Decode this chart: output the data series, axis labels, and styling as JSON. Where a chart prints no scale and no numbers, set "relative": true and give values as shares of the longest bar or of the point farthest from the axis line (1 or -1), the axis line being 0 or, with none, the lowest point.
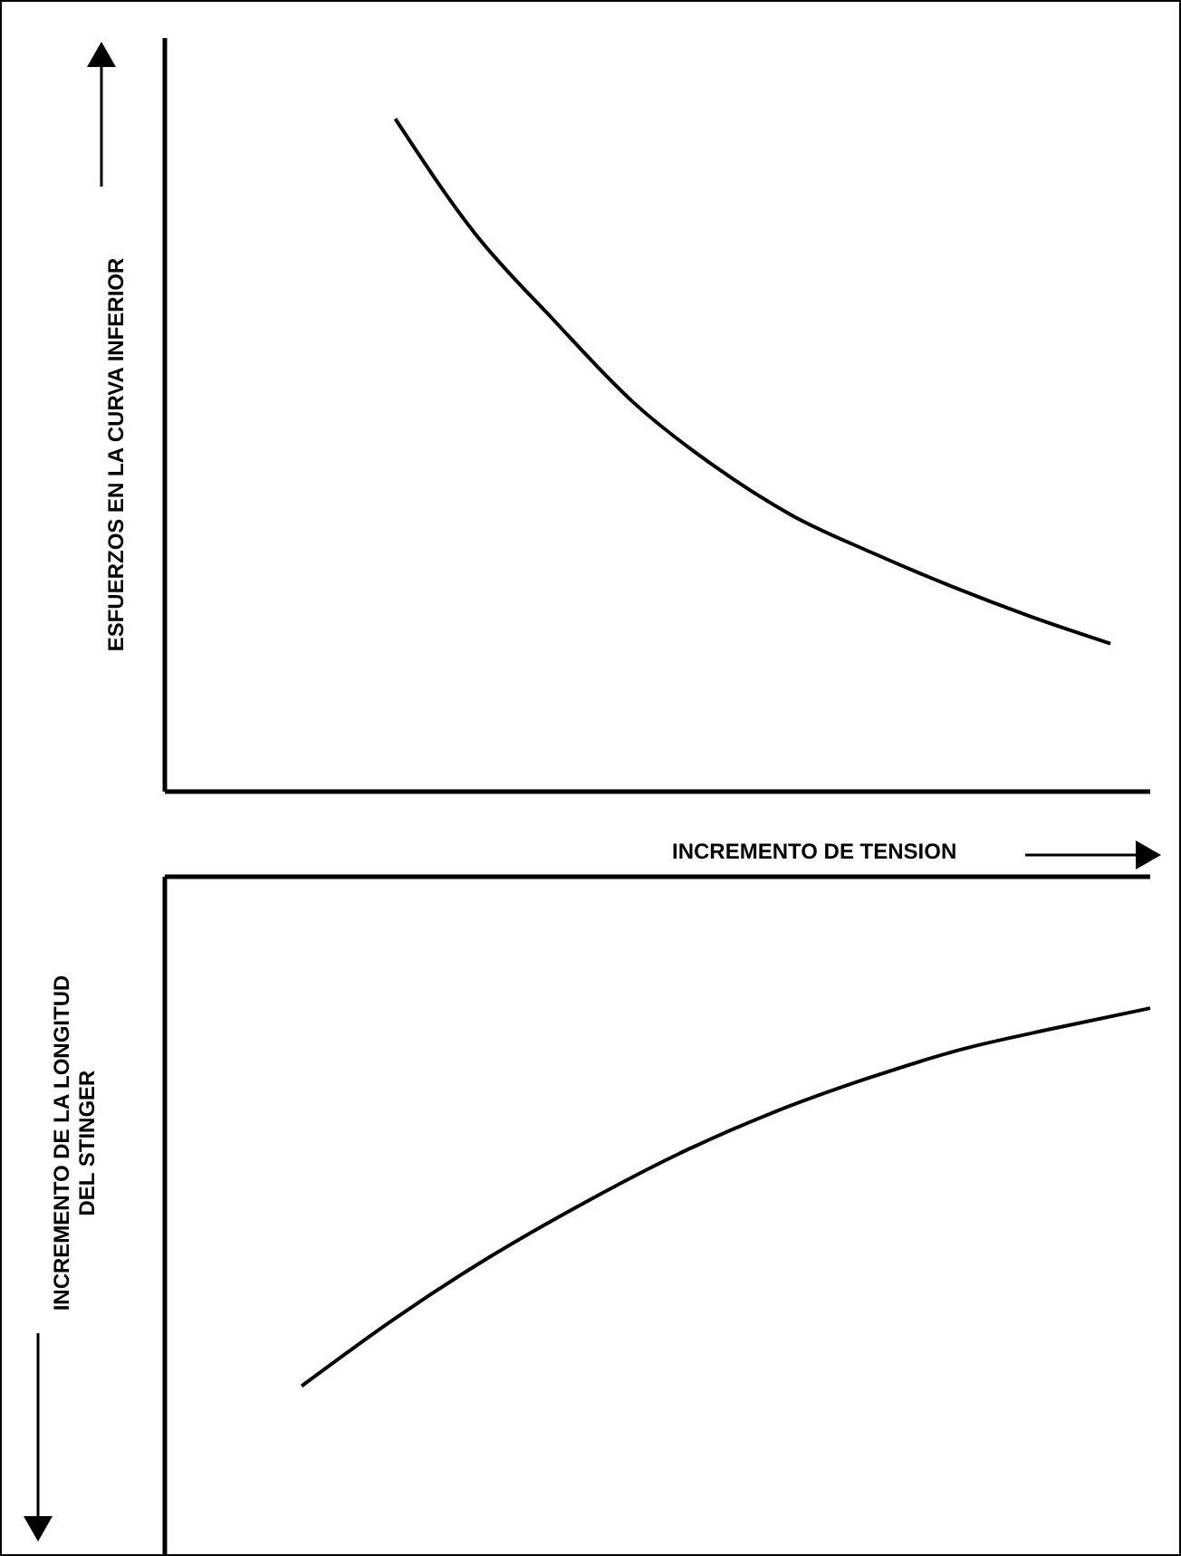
{
  "chart_data": [
    {
      "type": "line",
      "ylabel": "ESFUERZOS EN LA CURVA INFERIOR",
      "xlabel": "INCREMENTO DE TENSION",
      "relative": true,
      "categories": [
        null,
        null,
        null,
        null,
        null,
        null,
        null,
        null,
        null,
        null
      ],
      "marker": "none",
      "series": [
        {
          "color": "#000000",
          "values": [
            1.0,
            0.83,
            0.7,
            0.578,
            0.485,
            0.41,
            0.355,
            0.305,
            0.26,
            0.22
          ]
        }
      ]
    },
    {
      "type": "line",
      "ylabel": "INCREMENTO DE LA LONGITUD DEL STINGER",
      "relative": true,
      "categories": [
        null,
        null,
        null,
        null,
        null,
        null,
        null,
        null,
        null,
        null
      ],
      "marker": "none",
      "series": [
        {
          "color": "#000000",
          "values": [
            -1.0,
            -0.866,
            -0.746,
            -0.64,
            -0.544,
            -0.463,
            -0.396,
            -0.339,
            -0.297,
            -0.258
          ]
        }
      ]
    }
  ]
}
